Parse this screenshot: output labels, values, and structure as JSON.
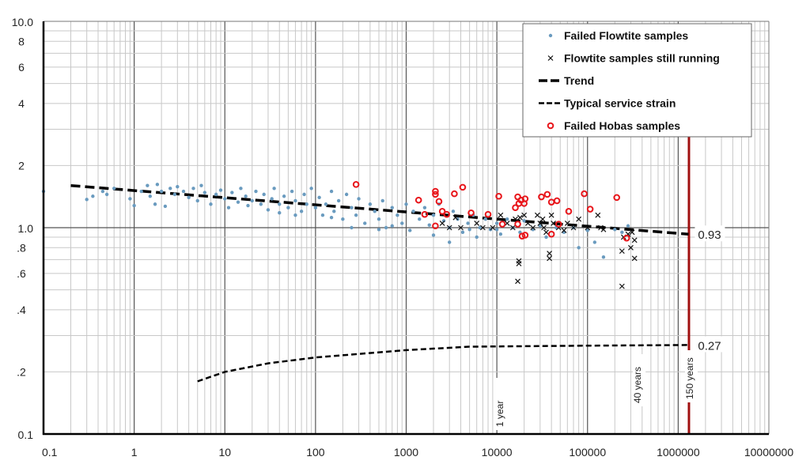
{
  "chart_data": {
    "type": "scatter",
    "x_scale": "log",
    "y_scale": "log",
    "xlim": [
      0.1,
      10000000
    ],
    "ylim": [
      0.1,
      10.0
    ],
    "grid": true,
    "legend_position": "top-right",
    "x_tick_labels": [
      {
        "value": 0.1,
        "label": "0.1"
      },
      {
        "value": 1,
        "label": "1"
      },
      {
        "value": 10,
        "label": "10"
      },
      {
        "value": 100,
        "label": "100"
      },
      {
        "value": 1000,
        "label": "1000"
      },
      {
        "value": 10000,
        "label": "10000"
      },
      {
        "value": 100000,
        "label": "100000"
      },
      {
        "value": 1000000,
        "label": "1000000"
      },
      {
        "value": 10000000,
        "label": "10000000"
      }
    ],
    "y_tick_labels": [
      {
        "value": 10,
        "label": "10.0"
      },
      {
        "value": 8,
        "label": "8"
      },
      {
        "value": 6,
        "label": "6"
      },
      {
        "value": 4,
        "label": "4"
      },
      {
        "value": 2,
        "label": "2"
      },
      {
        "value": 1,
        "label": "1.0"
      },
      {
        "value": 0.8,
        "label": ".8"
      },
      {
        "value": 0.6,
        "label": ".6"
      },
      {
        "value": 0.4,
        "label": ".4"
      },
      {
        "value": 0.2,
        "label": ".2"
      },
      {
        "value": 0.1,
        "label": "0.1"
      }
    ],
    "legend": [
      {
        "key": "flowtite_failed",
        "label": "Failed Flowtite samples"
      },
      {
        "key": "flowtite_running",
        "label": "Flowtite samples still running"
      },
      {
        "key": "trend",
        "label": "Trend"
      },
      {
        "key": "service",
        "label": "Typical service strain"
      },
      {
        "key": "hobas_failed",
        "label": "Failed Hobas samples"
      }
    ],
    "colors": {
      "flowtite_failed": "#6a9bbf",
      "flowtite_running": "#111111",
      "trend": "#000000",
      "service": "#000000",
      "hobas_failed": "#e8161b",
      "limit_line": "#a01010"
    },
    "series": {
      "flowtite_failed": [
        [
          0.1,
          1.5
        ],
        [
          0.3,
          1.37
        ],
        [
          0.35,
          1.42
        ],
        [
          0.45,
          1.5
        ],
        [
          0.5,
          1.45
        ],
        [
          0.6,
          1.55
        ],
        [
          0.9,
          1.38
        ],
        [
          1,
          1.28
        ],
        [
          1.2,
          1.5
        ],
        [
          1.4,
          1.6
        ],
        [
          1.5,
          1.42
        ],
        [
          1.7,
          1.3
        ],
        [
          1.8,
          1.62
        ],
        [
          2,
          1.5
        ],
        [
          2.2,
          1.27
        ],
        [
          2.5,
          1.55
        ],
        [
          2.8,
          1.45
        ],
        [
          3,
          1.58
        ],
        [
          3.5,
          1.5
        ],
        [
          4,
          1.4
        ],
        [
          4.5,
          1.55
        ],
        [
          5,
          1.35
        ],
        [
          5.5,
          1.6
        ],
        [
          6,
          1.48
        ],
        [
          7,
          1.3
        ],
        [
          8,
          1.45
        ],
        [
          9,
          1.52
        ],
        [
          10,
          1.38
        ],
        [
          11,
          1.25
        ],
        [
          12,
          1.48
        ],
        [
          14,
          1.33
        ],
        [
          15,
          1.55
        ],
        [
          17,
          1.42
        ],
        [
          18,
          1.28
        ],
        [
          20,
          1.35
        ],
        [
          22,
          1.5
        ],
        [
          25,
          1.3
        ],
        [
          27,
          1.45
        ],
        [
          30,
          1.22
        ],
        [
          33,
          1.38
        ],
        [
          35,
          1.55
        ],
        [
          40,
          1.3
        ],
        [
          40,
          1.18
        ],
        [
          45,
          1.42
        ],
        [
          50,
          1.25
        ],
        [
          55,
          1.5
        ],
        [
          60,
          1.35
        ],
        [
          60,
          1.15
        ],
        [
          70,
          1.2
        ],
        [
          75,
          1.45
        ],
        [
          80,
          1.3
        ],
        [
          90,
          1.55
        ],
        [
          100,
          1.25
        ],
        [
          110,
          1.4
        ],
        [
          120,
          1.15
        ],
        [
          130,
          1.3
        ],
        [
          150,
          1.5
        ],
        [
          150,
          1.12
        ],
        [
          160,
          1.2
        ],
        [
          180,
          1.35
        ],
        [
          200,
          1.1
        ],
        [
          220,
          1.45
        ],
        [
          250,
          1.25
        ],
        [
          250,
          1.0
        ],
        [
          280,
          1.15
        ],
        [
          300,
          1.38
        ],
        [
          350,
          1.05
        ],
        [
          400,
          1.3
        ],
        [
          450,
          1.2
        ],
        [
          500,
          1.1
        ],
        [
          500,
          0.98
        ],
        [
          550,
          1.35
        ],
        [
          600,
          1.0
        ],
        [
          700,
          1.25
        ],
        [
          700,
          1.02
        ],
        [
          800,
          1.15
        ],
        [
          900,
          1.05
        ],
        [
          1000,
          1.3
        ],
        [
          1100,
          0.97
        ],
        [
          1200,
          1.2
        ],
        [
          1400,
          1.1
        ],
        [
          1600,
          1.25
        ],
        [
          1800,
          1.03
        ],
        [
          2000,
          1.15
        ],
        [
          2000,
          0.92
        ],
        [
          2300,
          1.3
        ],
        [
          2600,
          1.08
        ],
        [
          3000,
          1.0
        ],
        [
          3000,
          0.85
        ],
        [
          3300,
          1.2
        ],
        [
          3700,
          1.1
        ],
        [
          4200,
          0.95
        ],
        [
          4800,
          1.05
        ],
        [
          5000,
          0.98
        ],
        [
          5500,
          1.15
        ],
        [
          6000,
          0.9
        ],
        [
          6500,
          1.0
        ],
        [
          7500,
          1.1
        ],
        [
          8500,
          0.98
        ],
        [
          10000,
          1.05
        ],
        [
          10000,
          0.98
        ],
        [
          11000,
          0.93
        ],
        [
          13000,
          1.1
        ],
        [
          15000,
          1.0
        ],
        [
          18000,
          0.95
        ],
        [
          20000,
          1.08
        ],
        [
          25000,
          0.98
        ],
        [
          30000,
          1.02
        ],
        [
          35000,
          0.9
        ],
        [
          45000,
          1.0
        ],
        [
          55000,
          0.95
        ],
        [
          70000,
          1.0
        ],
        [
          80000,
          0.8
        ],
        [
          100000,
          0.97
        ],
        [
          120000,
          0.85
        ],
        [
          150000,
          0.72
        ],
        [
          200000,
          0.98
        ],
        [
          240000,
          0.95
        ],
        [
          280000,
          1.02
        ]
      ],
      "flowtite_running": [
        [
          2500,
          1.05
        ],
        [
          3000,
          1.0
        ],
        [
          3500,
          1.12
        ],
        [
          4000,
          1.0
        ],
        [
          6000,
          1.05
        ],
        [
          7000,
          1.0
        ],
        [
          9000,
          1.0
        ],
        [
          11000,
          1.15
        ],
        [
          13000,
          1.05
        ],
        [
          15000,
          1.0
        ],
        [
          16000,
          1.1
        ],
        [
          17500,
          0.69
        ],
        [
          17500,
          0.67
        ],
        [
          17000,
          0.55
        ],
        [
          18000,
          1.12
        ],
        [
          20000,
          1.15
        ],
        [
          22000,
          1.05
        ],
        [
          25000,
          1.0
        ],
        [
          28000,
          1.15
        ],
        [
          30000,
          1.05
        ],
        [
          32000,
          1.1
        ],
        [
          33000,
          1.0
        ],
        [
          35000,
          0.95
        ],
        [
          38000,
          0.75
        ],
        [
          38000,
          0.71
        ],
        [
          40000,
          1.15
        ],
        [
          42000,
          1.05
        ],
        [
          48000,
          1.0
        ],
        [
          55000,
          0.97
        ],
        [
          60000,
          1.05
        ],
        [
          70000,
          1.0
        ],
        [
          80000,
          1.1
        ],
        [
          100000,
          1.0
        ],
        [
          130000,
          1.15
        ],
        [
          140000,
          1.0
        ],
        [
          150000,
          0.98
        ],
        [
          240000,
          0.52
        ],
        [
          240000,
          0.77
        ],
        [
          250000,
          0.9
        ],
        [
          280000,
          0.93
        ],
        [
          300000,
          0.8
        ],
        [
          310000,
          0.95
        ],
        [
          330000,
          0.71
        ],
        [
          330000,
          0.87
        ]
      ],
      "hobas_failed": [
        [
          280,
          1.62
        ],
        [
          1370,
          1.36
        ],
        [
          1600,
          1.16
        ],
        [
          2100,
          1.5
        ],
        [
          2100,
          1.45
        ],
        [
          2100,
          1.02
        ],
        [
          2300,
          1.34
        ],
        [
          2500,
          1.2
        ],
        [
          2800,
          1.16
        ],
        [
          3400,
          1.46
        ],
        [
          4200,
          1.57
        ],
        [
          5200,
          1.18
        ],
        [
          8000,
          1.16
        ],
        [
          10500,
          1.42
        ],
        [
          11500,
          1.04
        ],
        [
          16000,
          1.25
        ],
        [
          17000,
          1.41
        ],
        [
          17000,
          1.04
        ],
        [
          17500,
          1.31
        ],
        [
          18500,
          1.36
        ],
        [
          19000,
          0.91
        ],
        [
          20000,
          1.31
        ],
        [
          20500,
          1.38
        ],
        [
          20500,
          0.92
        ],
        [
          31000,
          1.41
        ],
        [
          36000,
          1.45
        ],
        [
          40000,
          1.33
        ],
        [
          40000,
          0.93
        ],
        [
          46000,
          1.35
        ],
        [
          48000,
          1.04
        ],
        [
          62000,
          1.2
        ],
        [
          92000,
          1.46
        ],
        [
          107000,
          1.23
        ],
        [
          210000,
          1.4
        ],
        [
          270000,
          0.89
        ]
      ],
      "trend": [
        [
          0.2,
          1.6
        ],
        [
          1300000,
          0.93
        ]
      ],
      "service": [
        [
          5,
          0.18
        ],
        [
          10,
          0.2
        ],
        [
          30,
          0.22
        ],
        [
          100,
          0.235
        ],
        [
          1000,
          0.255
        ],
        [
          5000,
          0.265
        ],
        [
          100000,
          0.268
        ],
        [
          1300000,
          0.27
        ]
      ]
    },
    "annotations": [
      {
        "key": "trend_end",
        "label": "0.93",
        "x": 1300000,
        "y": 0.93
      },
      {
        "key": "service_end",
        "label": "0.27",
        "x": 1300000,
        "y": 0.27
      }
    ],
    "time_markers": [
      {
        "label": "1 year",
        "x": 10000
      },
      {
        "label": "40 years",
        "x": 350400
      },
      {
        "label": "150 years",
        "x": 1314000
      }
    ]
  }
}
